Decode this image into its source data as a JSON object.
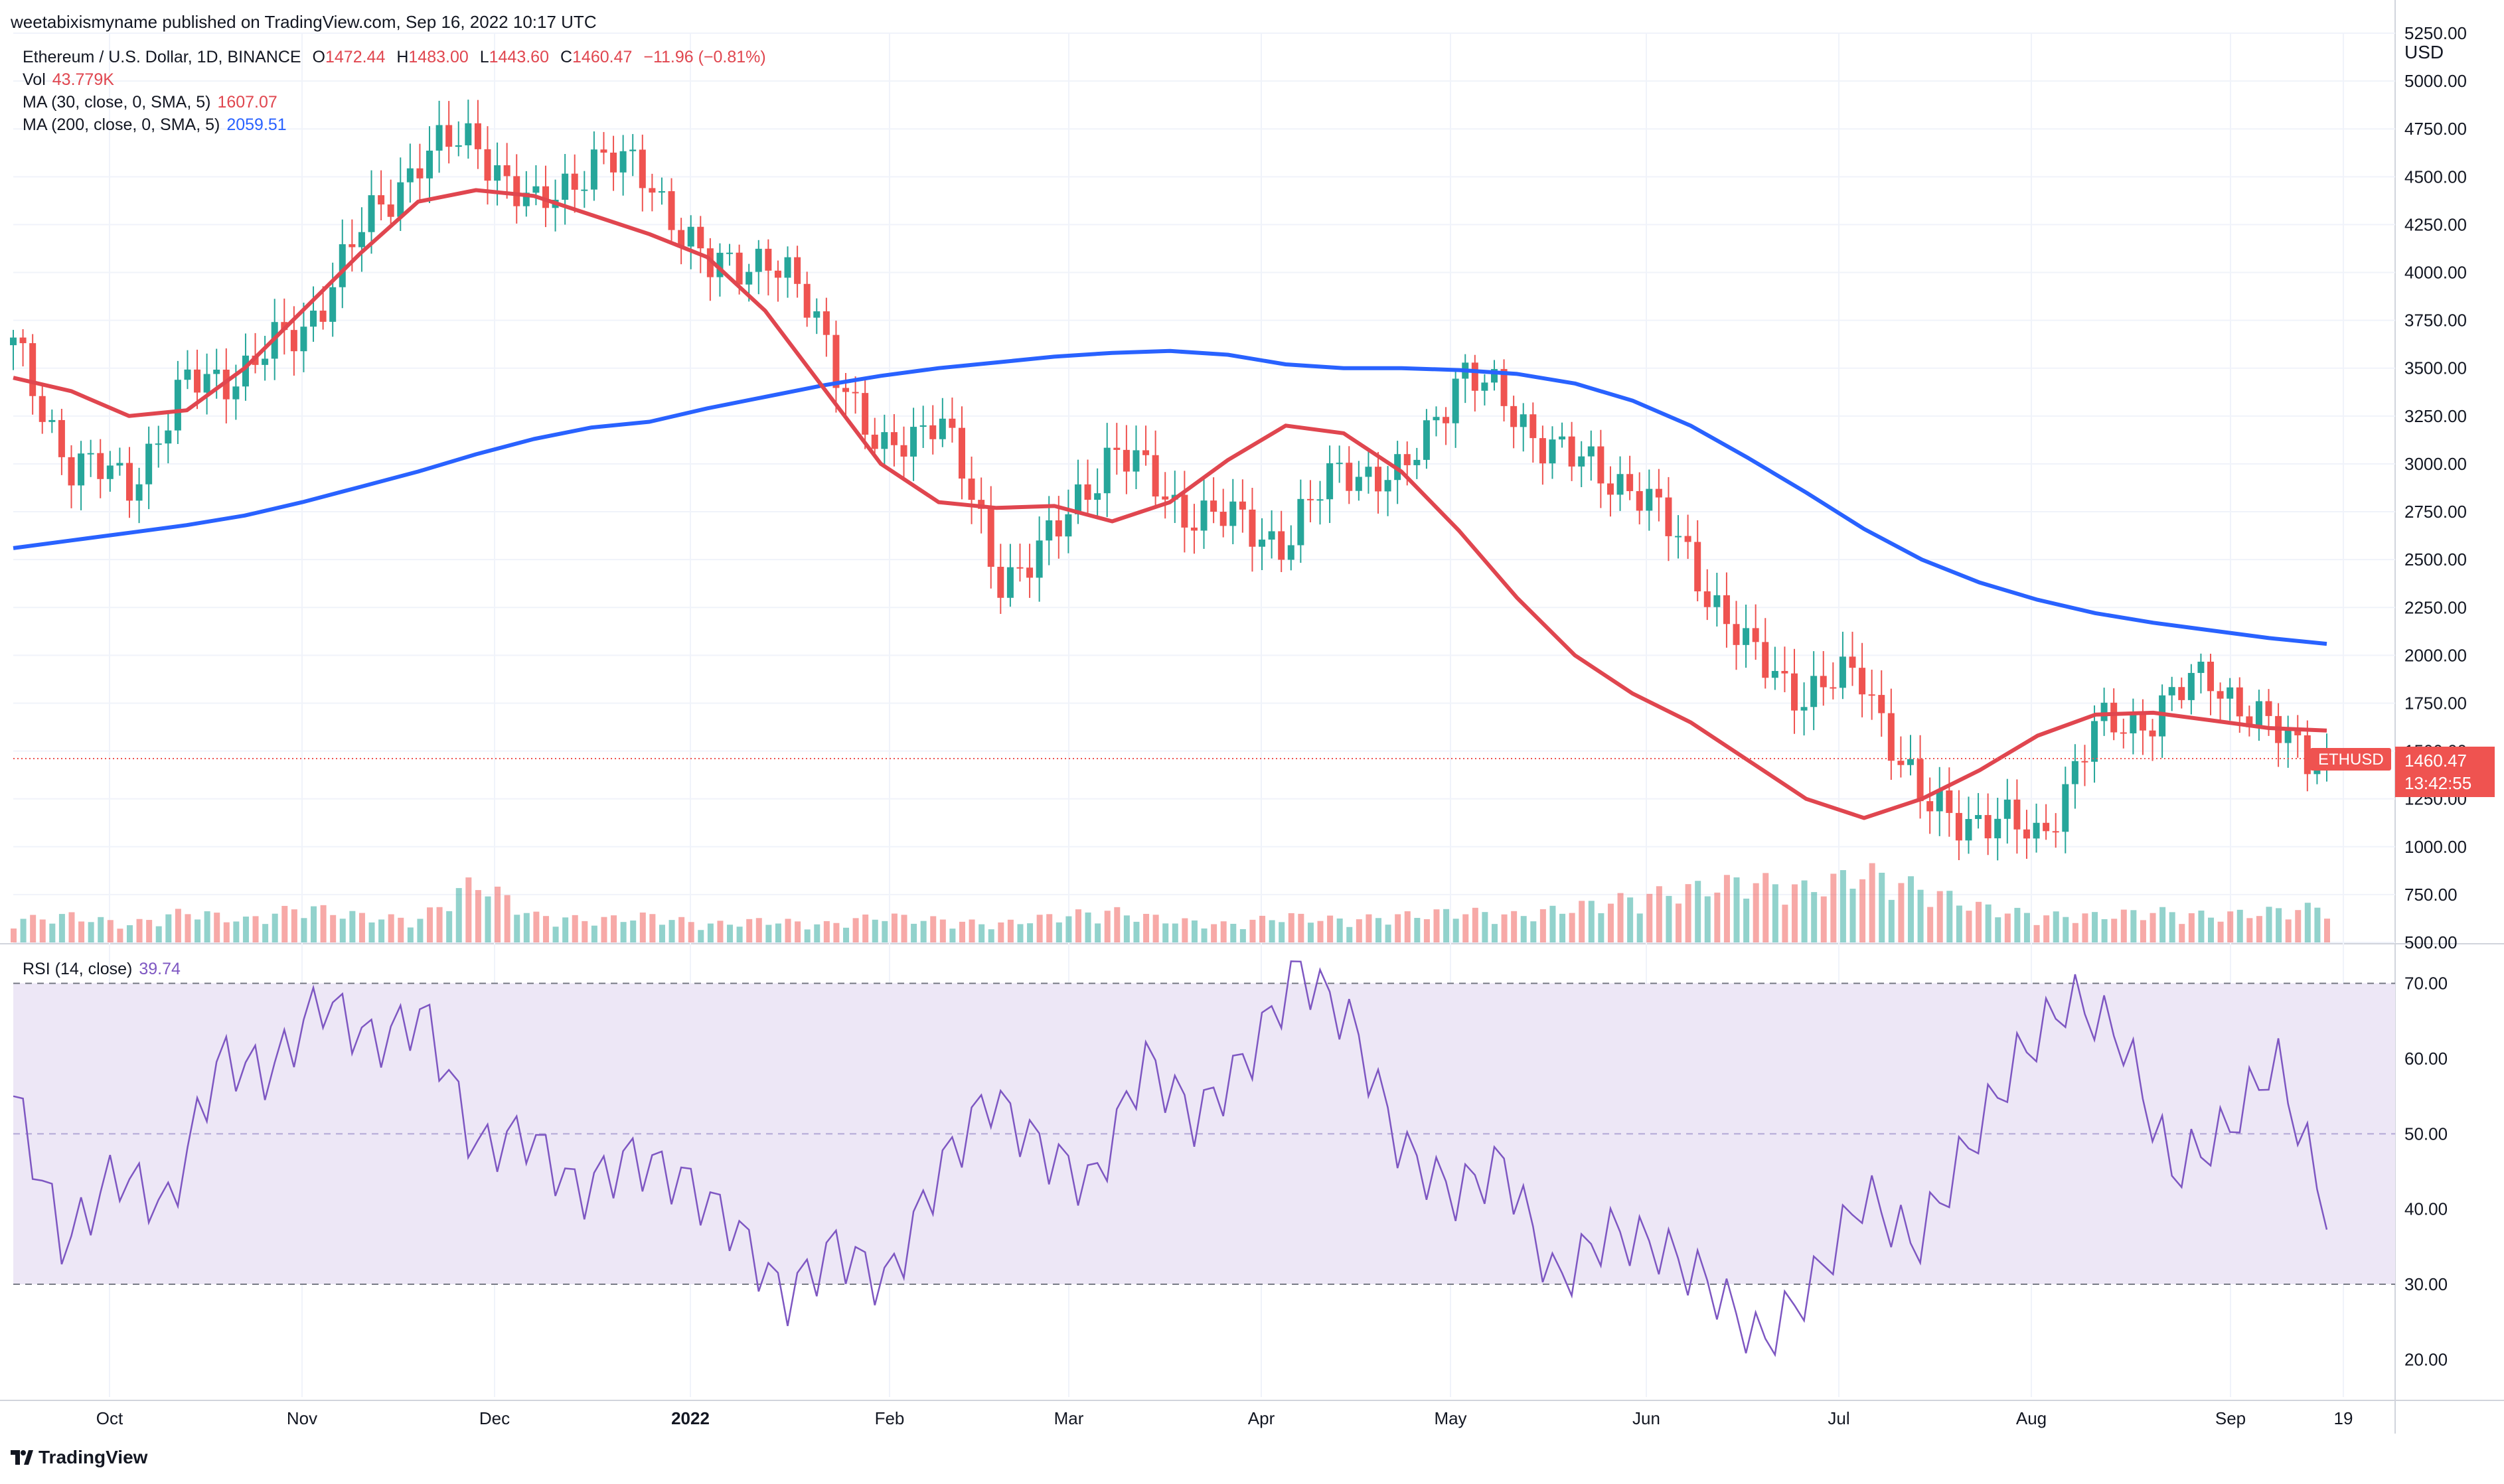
{
  "published_line": "weetabixismyname published on TradingView.com, Sep 16, 2022 10:17 UTC",
  "header": {
    "symbol": "Ethereum / U.S. Dollar, 1D, BINANCE",
    "o_label": "O",
    "o": "1472.44",
    "h_label": "H",
    "h": "1483.00",
    "l_label": "L",
    "l": "1443.60",
    "c_label": "C",
    "c": "1460.47",
    "change": "−11.96 (−0.81%)"
  },
  "indicators": {
    "vol_label": "Vol",
    "vol_value": "43.779K",
    "ma30_label": "MA (30, close, 0, SMA, 5)",
    "ma30_value": "1607.07",
    "ma200_label": "MA (200, close, 0, SMA, 5)",
    "ma200_value": "2059.51",
    "rsi_label": "RSI (14, close)",
    "rsi_value": "39.74"
  },
  "price_badge": {
    "symbol": "ETHUSD",
    "price": "1460.47",
    "countdown": "13:42:55"
  },
  "footer_brand": "TradingView",
  "colors": {
    "up": "#26a69a",
    "down": "#ef5350",
    "ma30": "#e0464f",
    "ma200": "#2962ff",
    "rsi": "#7e57c2",
    "rsi_band": "#ede7f6"
  },
  "chart_data": {
    "type": "candlestick",
    "currency_label": "USD",
    "x_ticks": [
      "Oct",
      "Nov",
      "Dec",
      "2022",
      "Feb",
      "Mar",
      "Apr",
      "May",
      "Jun",
      "Jul",
      "Aug",
      "Sep",
      "19"
    ],
    "y_ticks": [
      500,
      750,
      1000,
      1250,
      1500,
      1750,
      2000,
      2250,
      2500,
      2750,
      3000,
      3250,
      3500,
      3750,
      4000,
      4250,
      4500,
      4750,
      5000,
      5250
    ],
    "ylim": [
      500,
      5250
    ],
    "rsi_ticks": [
      20,
      30,
      40,
      50,
      60,
      70
    ],
    "rsi_ylim": [
      15,
      75
    ],
    "rsi_band": [
      30,
      70
    ],
    "ma200_path": [
      2560,
      2600,
      2640,
      2680,
      2730,
      2800,
      2880,
      2960,
      3050,
      3130,
      3190,
      3220,
      3290,
      3350,
      3410,
      3460,
      3500,
      3530,
      3560,
      3580,
      3590,
      3570,
      3520,
      3500,
      3500,
      3490,
      3470,
      3420,
      3330,
      3200,
      3030,
      2850,
      2660,
      2500,
      2380,
      2290,
      2220,
      2170,
      2130,
      2090,
      2060
    ],
    "ma30_path": [
      3450,
      3380,
      3250,
      3280,
      3500,
      3800,
      4100,
      4370,
      4430,
      4400,
      4300,
      4200,
      4080,
      3800,
      3400,
      3000,
      2800,
      2770,
      2780,
      2700,
      2800,
      3020,
      3200,
      3160,
      2960,
      2650,
      2300,
      2000,
      1800,
      1650,
      1450,
      1250,
      1150,
      1250,
      1400,
      1580,
      1690,
      1700,
      1660,
      1620,
      1607
    ],
    "close_path": [
      3600,
      3000,
      2900,
      3400,
      3500,
      3700,
      4200,
      4600,
      4700,
      4300,
      4600,
      4500,
      4000,
      4100,
      3700,
      3000,
      3300,
      2400,
      2600,
      3100,
      2800,
      2700,
      2600,
      3000,
      2900,
      3500,
      3250,
      3000,
      2900,
      2500,
      2000,
      1800,
      1900,
      1200,
      1150,
      1050,
      1600,
      1700,
      1900,
      1600,
      1460
    ],
    "volume_levels": [
      0.25,
      0.3,
      0.2,
      0.35,
      0.25,
      0.4,
      0.3,
      0.25,
      0.7,
      0.3,
      0.25,
      0.3,
      0.2,
      0.25,
      0.2,
      0.3,
      0.25,
      0.2,
      0.3,
      0.35,
      0.25,
      0.2,
      0.3,
      0.25,
      0.3,
      0.35,
      0.3,
      0.4,
      0.5,
      0.6,
      0.7,
      0.6,
      0.8,
      0.6,
      0.4,
      0.3,
      0.3,
      0.35,
      0.3,
      0.35,
      0.4
    ],
    "rsi_path": [
      55,
      35,
      45,
      40,
      60,
      58,
      68,
      62,
      66,
      48,
      50,
      42,
      47,
      44,
      38,
      28,
      35,
      30,
      45,
      55,
      48,
      43,
      60,
      52,
      60,
      72,
      65,
      48,
      42,
      46,
      30,
      37,
      35,
      30,
      22,
      30,
      42,
      35,
      48,
      60,
      68,
      63,
      45,
      50,
      60,
      40
    ]
  }
}
